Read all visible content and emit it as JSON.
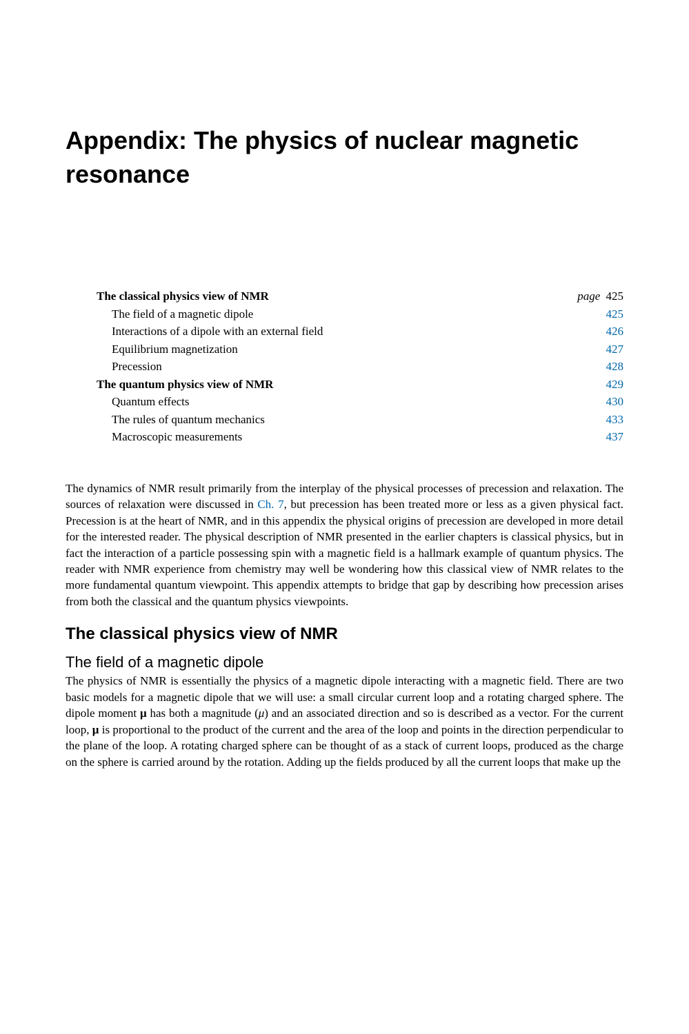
{
  "title": "Appendix: The physics of nuclear magnetic resonance",
  "toc": {
    "page_label": "page",
    "items": [
      {
        "label": "The classical physics view of NMR",
        "page": "425",
        "section": true,
        "first": true
      },
      {
        "label": "The field of a magnetic dipole",
        "page": "425",
        "section": false
      },
      {
        "label": "Interactions of a dipole with an external field",
        "page": "426",
        "section": false
      },
      {
        "label": "Equilibrium magnetization",
        "page": "427",
        "section": false
      },
      {
        "label": "Precession",
        "page": "428",
        "section": false
      },
      {
        "label": "The quantum physics view of NMR",
        "page": "429",
        "section": true
      },
      {
        "label": "Quantum effects",
        "page": "430",
        "section": false
      },
      {
        "label": "The rules of quantum mechanics",
        "page": "433",
        "section": false
      },
      {
        "label": "Macroscopic measurements",
        "page": "437",
        "section": false
      }
    ]
  },
  "intro": {
    "part1": "The dynamics of NMR result primarily from the interplay of the physical processes of precession and relaxation. The sources of relaxation were discussed in ",
    "link": "Ch. 7",
    "part2": ", but precession has been treated more or less as a given physical fact. Precession is at the heart of NMR, and in this appendix the physical origins of precession are developed in more detail for the interested reader. The physical description of NMR presented in the earlier chapters is classical physics, but in fact the interaction of a particle possessing spin with a magnetic field is a hallmark example of quantum physics. The reader with NMR experience from chemistry may well be wondering how this classical view of NMR relates to the more fundamental quantum viewpoint. This appendix attempts to bridge that gap by describing how precession arises from both the classical and the quantum physics viewpoints."
  },
  "h2": "The classical physics view of NMR",
  "h3": "The field of a magnetic dipole",
  "body2": {
    "p1": "The physics of NMR is essentially the physics of a magnetic dipole interacting with a magnetic field. There are two basic models for a magnetic dipole that we will use: a small circular current loop and a rotating charged sphere. The dipole moment ",
    "mu1": "μ",
    "p2": " has both a magnitude (",
    "mu2": "μ",
    "p3": ") and an associated direction and so is described as a vector. For the current loop, ",
    "mu3": "μ",
    "p4": " is proportional to the product of the current and the area of the loop and points in the direction perpendicular to the plane of the loop. A rotating charged sphere can be thought of as a stack of current loops, produced as the charge on the sphere is carried around by the rotation. Adding up the fields produced by all the current loops that make up the"
  }
}
